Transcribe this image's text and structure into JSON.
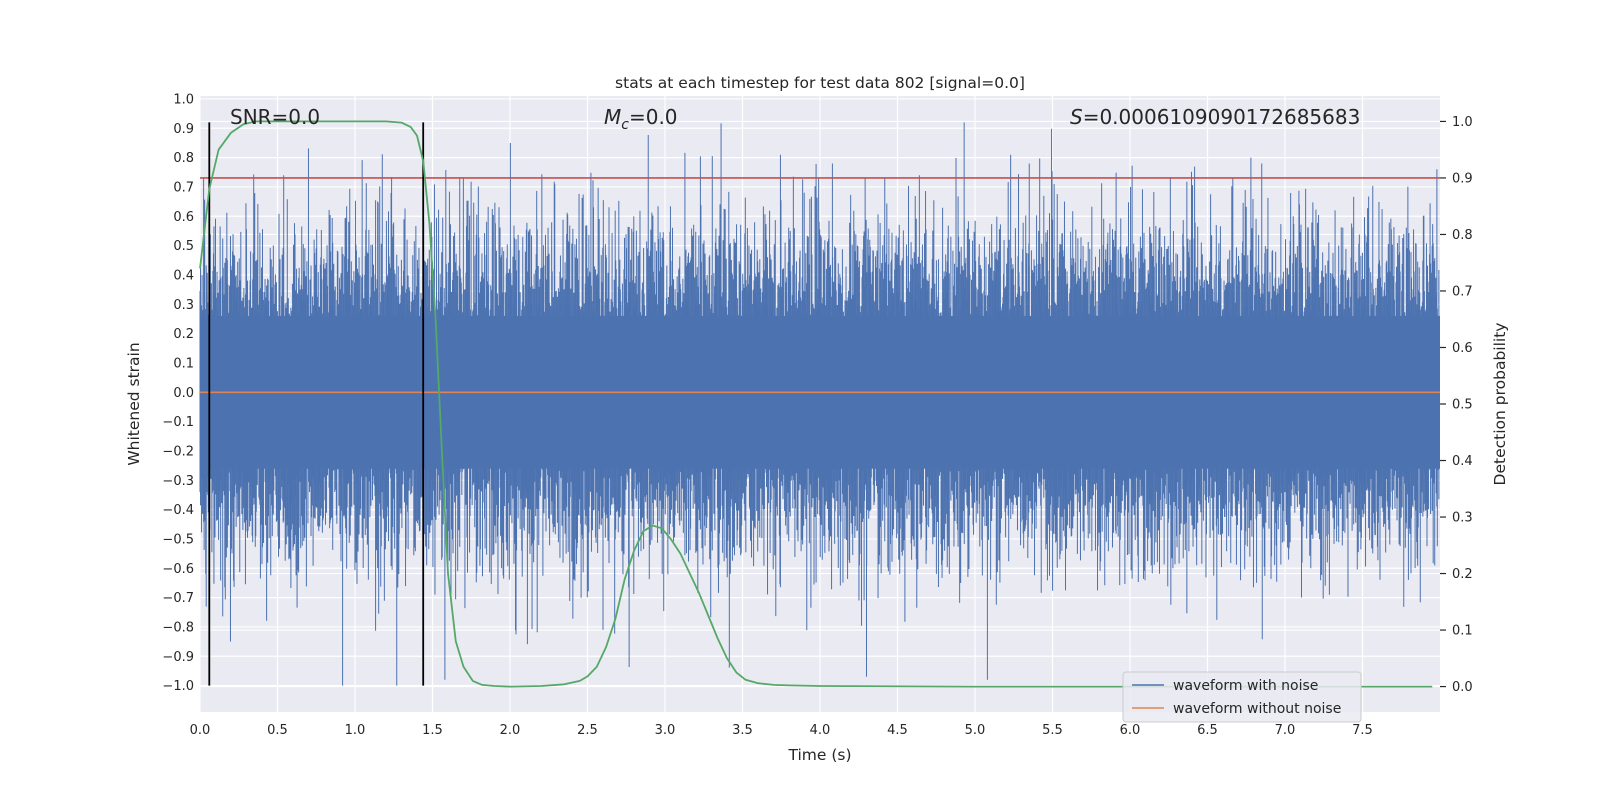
{
  "chart_data": {
    "type": "line",
    "title": "stats at each timestep for test data 802 [signal=0.0]",
    "xlabel": "Time (s)",
    "ylabel_left": "Whitened strain",
    "ylabel_right": "Detection probability",
    "xlim": [
      0.0,
      8.0
    ],
    "ylim_left": [
      -1.09,
      1.01
    ],
    "ylim_right": [
      -0.045,
      1.045
    ],
    "x_ticks": [
      "0.0",
      "0.5",
      "1.0",
      "1.5",
      "2.0",
      "2.5",
      "3.0",
      "3.5",
      "4.0",
      "4.5",
      "5.0",
      "5.5",
      "6.0",
      "6.5",
      "7.0",
      "7.5"
    ],
    "y_left_ticks": [
      "1.0",
      "0.9",
      "0.8",
      "0.7",
      "0.6",
      "0.5",
      "0.4",
      "0.3",
      "0.2",
      "0.1",
      "0.0",
      "−0.1",
      "−0.2",
      "−0.3",
      "−0.4",
      "−0.5",
      "−0.6",
      "−0.7",
      "−0.8",
      "−0.9",
      "−1.0"
    ],
    "y_right_ticks": [
      "1.0",
      "0.9",
      "0.8",
      "0.7",
      "0.6",
      "0.5",
      "0.4",
      "0.3",
      "0.2",
      "0.1",
      "0.0"
    ],
    "grid": true,
    "annotations": {
      "snr": "SNR=0.0",
      "mc_symbol": "M",
      "mc_sub": "c",
      "mc_value": "=0.0",
      "s_symbol": "S",
      "s_value": "=0.0006109090172685683"
    },
    "threshold": {
      "value": 0.9,
      "axis": "right",
      "color": "#c44e52"
    },
    "vertical_markers": {
      "x": [
        0.06,
        1.44
      ],
      "ymin": -1.0,
      "ymax": 0.92,
      "color": "#000000"
    },
    "series": [
      {
        "name": "waveform with noise",
        "color": "#4c72b0",
        "axis": "left",
        "noise_envelope": {
          "typical_abs": 0.42,
          "max": 0.92,
          "min": -1.0
        },
        "peaks": [
          {
            "x": 0.54,
            "y": 0.74
          },
          {
            "x": 0.92,
            "y": -1.0
          },
          {
            "x": 1.58,
            "y": -0.98
          },
          {
            "x": 2.6,
            "y": -0.81
          },
          {
            "x": 4.08,
            "y": 0.78
          },
          {
            "x": 4.3,
            "y": -0.97
          },
          {
            "x": 4.93,
            "y": 0.92
          },
          {
            "x": 5.08,
            "y": -0.98
          },
          {
            "x": 5.23,
            "y": 0.81
          },
          {
            "x": 5.35,
            "y": 0.78
          },
          {
            "x": 6.78,
            "y": 0.8
          },
          {
            "x": 6.85,
            "y": 0.78
          },
          {
            "x": 7.98,
            "y": 0.76
          }
        ]
      },
      {
        "name": "waveform without noise",
        "color": "#dd8452",
        "axis": "left",
        "x": [
          0.0,
          8.0
        ],
        "y": [
          0.0,
          0.0
        ]
      },
      {
        "color": "#55a868",
        "axis": "right",
        "x": [
          0.0,
          0.06,
          0.12,
          0.2,
          0.28,
          0.36,
          0.44,
          0.6,
          0.8,
          1.0,
          1.2,
          1.3,
          1.36,
          1.4,
          1.44,
          1.48,
          1.52,
          1.56,
          1.6,
          1.65,
          1.7,
          1.76,
          1.82,
          1.9,
          2.0,
          2.2,
          2.35,
          2.45,
          2.5,
          2.56,
          2.62,
          2.68,
          2.74,
          2.8,
          2.86,
          2.92,
          2.98,
          3.04,
          3.1,
          3.16,
          3.22,
          3.28,
          3.34,
          3.4,
          3.46,
          3.52,
          3.6,
          3.7,
          3.8,
          4.0,
          5.0,
          6.0,
          7.0,
          7.95
        ],
        "y": [
          0.74,
          0.88,
          0.95,
          0.98,
          0.995,
          1.0,
          1.0,
          1.0,
          1.0,
          1.0,
          1.0,
          0.998,
          0.99,
          0.975,
          0.93,
          0.82,
          0.65,
          0.42,
          0.2,
          0.08,
          0.035,
          0.01,
          0.003,
          0.001,
          0.0,
          0.001,
          0.004,
          0.01,
          0.018,
          0.035,
          0.07,
          0.12,
          0.19,
          0.24,
          0.275,
          0.285,
          0.28,
          0.26,
          0.235,
          0.2,
          0.165,
          0.125,
          0.085,
          0.05,
          0.025,
          0.012,
          0.006,
          0.003,
          0.002,
          0.001,
          0.0,
          0.0,
          0.0,
          0.0
        ]
      }
    ],
    "legend": {
      "position": "bottom-right",
      "entries": [
        "waveform with noise",
        "waveform without noise"
      ]
    }
  }
}
